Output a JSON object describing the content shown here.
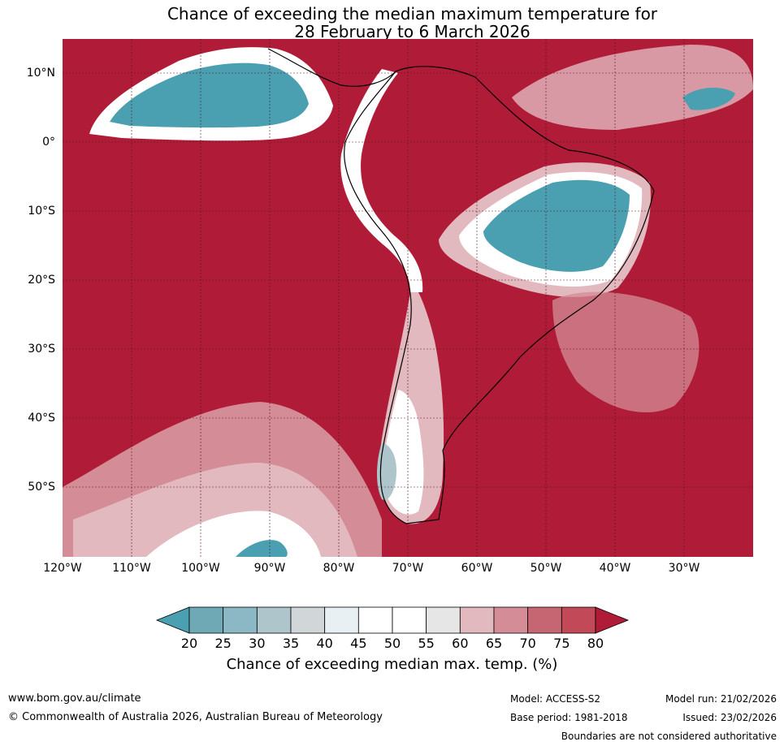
{
  "title": {
    "line1": "Chance of exceeding the median maximum temperature for",
    "line2": "28 February to 6 March 2026"
  },
  "map": {
    "latitudes": [
      "10°N",
      "0°",
      "10°S",
      "20°S",
      "30°S",
      "40°S",
      "50°S"
    ],
    "longitudes": [
      "120°W",
      "110°W",
      "100°W",
      "90°W",
      "80°W",
      "70°W",
      "60°W",
      "50°W",
      "40°W",
      "30°W"
    ]
  },
  "colorbar": {
    "ticks": [
      "20",
      "25",
      "30",
      "35",
      "40",
      "45",
      "50",
      "55",
      "60",
      "65",
      "70",
      "75",
      "80"
    ],
    "colors": [
      "#4aa0b1",
      "#6fa9b6",
      "#8cb8c6",
      "#adc5cb",
      "#d1d7d9",
      "#e8f0f3",
      "#ffffff",
      "#ffffff",
      "#e6e6e6",
      "#e2b9bf",
      "#d48c96",
      "#c56672",
      "#c24a58",
      "#b01c38"
    ],
    "label": "Chance of exceeding median max. temp. (%)"
  },
  "footer": {
    "website": "www.bom.gov.au/climate",
    "copyright": "© Commonwealth of Australia 2026, Australian Bureau of Meteorology",
    "model": "Model: ACCESS-S2",
    "base_period": "Base period: 1981-2018",
    "model_run": "Model run: 21/02/2026",
    "issued": "Issued: 23/02/2026",
    "disclaimer": "Boundaries are not considered authoritative"
  }
}
